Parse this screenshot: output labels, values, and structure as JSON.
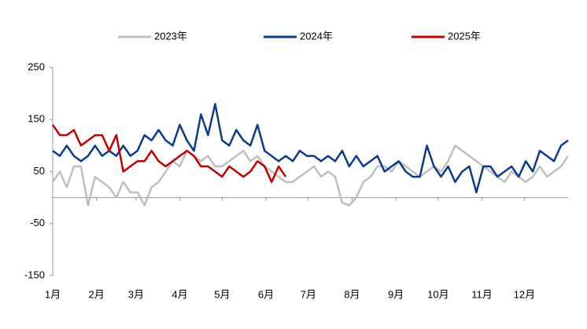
{
  "chart_data": {
    "type": "line",
    "x": [
      0,
      5,
      10,
      15,
      20,
      25,
      30,
      35,
      40,
      45,
      50,
      55,
      60,
      65,
      70,
      75,
      80,
      85,
      90,
      95,
      100,
      105,
      110,
      115,
      120,
      125,
      130,
      135,
      140,
      145,
      150,
      155,
      160,
      165,
      170,
      175,
      180,
      185,
      190,
      195,
      200,
      205,
      210,
      215,
      220,
      225,
      230,
      235,
      240,
      245,
      250,
      255,
      260,
      265,
      270,
      275,
      280,
      285,
      290,
      295,
      300,
      305,
      310,
      315,
      320,
      325,
      330,
      335,
      340,
      345,
      350,
      355,
      360,
      365
    ],
    "xlim": [
      0,
      365
    ],
    "xticks": [
      {
        "value": 0,
        "label": "1月"
      },
      {
        "value": 31,
        "label": "2月"
      },
      {
        "value": 59,
        "label": "3月"
      },
      {
        "value": 90,
        "label": "4月"
      },
      {
        "value": 120,
        "label": "5月"
      },
      {
        "value": 151,
        "label": "6月"
      },
      {
        "value": 181,
        "label": "7月"
      },
      {
        "value": 212,
        "label": "8月"
      },
      {
        "value": 243,
        "label": "9月"
      },
      {
        "value": 273,
        "label": "10月"
      },
      {
        "value": 304,
        "label": "11月"
      },
      {
        "value": 334,
        "label": "12月"
      }
    ],
    "ylim": [
      -150,
      250
    ],
    "yticks": [
      250,
      150,
      50,
      -50,
      -150
    ],
    "legend": "top",
    "series": [
      {
        "name": "2023年",
        "color": "#bfbfbf",
        "values": [
          30,
          50,
          20,
          60,
          60,
          -15,
          40,
          30,
          20,
          0,
          30,
          10,
          10,
          -15,
          20,
          30,
          50,
          70,
          60,
          90,
          80,
          70,
          80,
          60,
          60,
          70,
          80,
          90,
          70,
          80,
          60,
          50,
          40,
          30,
          30,
          40,
          50,
          60,
          40,
          50,
          40,
          -10,
          -15,
          0,
          30,
          40,
          60,
          60,
          50,
          70,
          60,
          50,
          40,
          50,
          60,
          50,
          70,
          100,
          90,
          80,
          70,
          60,
          50,
          40,
          30,
          50,
          40,
          30,
          40,
          60,
          40,
          50,
          60,
          80
        ]
      },
      {
        "name": "2024年",
        "color": "#0b3a8c",
        "values": [
          90,
          80,
          100,
          80,
          70,
          80,
          100,
          80,
          90,
          80,
          100,
          80,
          90,
          120,
          110,
          130,
          110,
          100,
          140,
          110,
          90,
          160,
          120,
          180,
          110,
          100,
          130,
          110,
          100,
          140,
          90,
          80,
          70,
          80,
          70,
          90,
          80,
          80,
          70,
          80,
          70,
          90,
          60,
          80,
          60,
          70,
          80,
          50,
          60,
          70,
          50,
          40,
          40,
          100,
          60,
          40,
          60,
          30,
          50,
          60,
          10,
          60,
          60,
          40,
          50,
          60,
          40,
          70,
          50,
          90,
          80,
          70,
          100,
          110
        ]
      },
      {
        "name": "2025年",
        "color": "#c00000",
        "values": [
          140,
          120,
          120,
          130,
          100,
          110,
          120,
          120,
          90,
          120,
          50,
          60,
          70,
          70,
          90,
          70,
          60,
          70,
          80,
          90,
          80,
          60,
          60,
          50,
          40,
          60,
          50,
          40,
          50,
          70,
          60,
          30,
          60,
          40,
          null,
          null,
          null,
          null,
          null,
          null,
          null,
          null,
          null,
          null,
          null,
          null,
          null,
          null,
          null,
          null,
          null,
          null,
          null,
          null,
          null,
          null,
          null,
          null,
          null,
          null,
          null,
          null,
          null,
          null,
          null,
          null,
          null,
          null,
          null,
          null,
          null,
          null,
          null,
          null
        ]
      }
    ]
  }
}
